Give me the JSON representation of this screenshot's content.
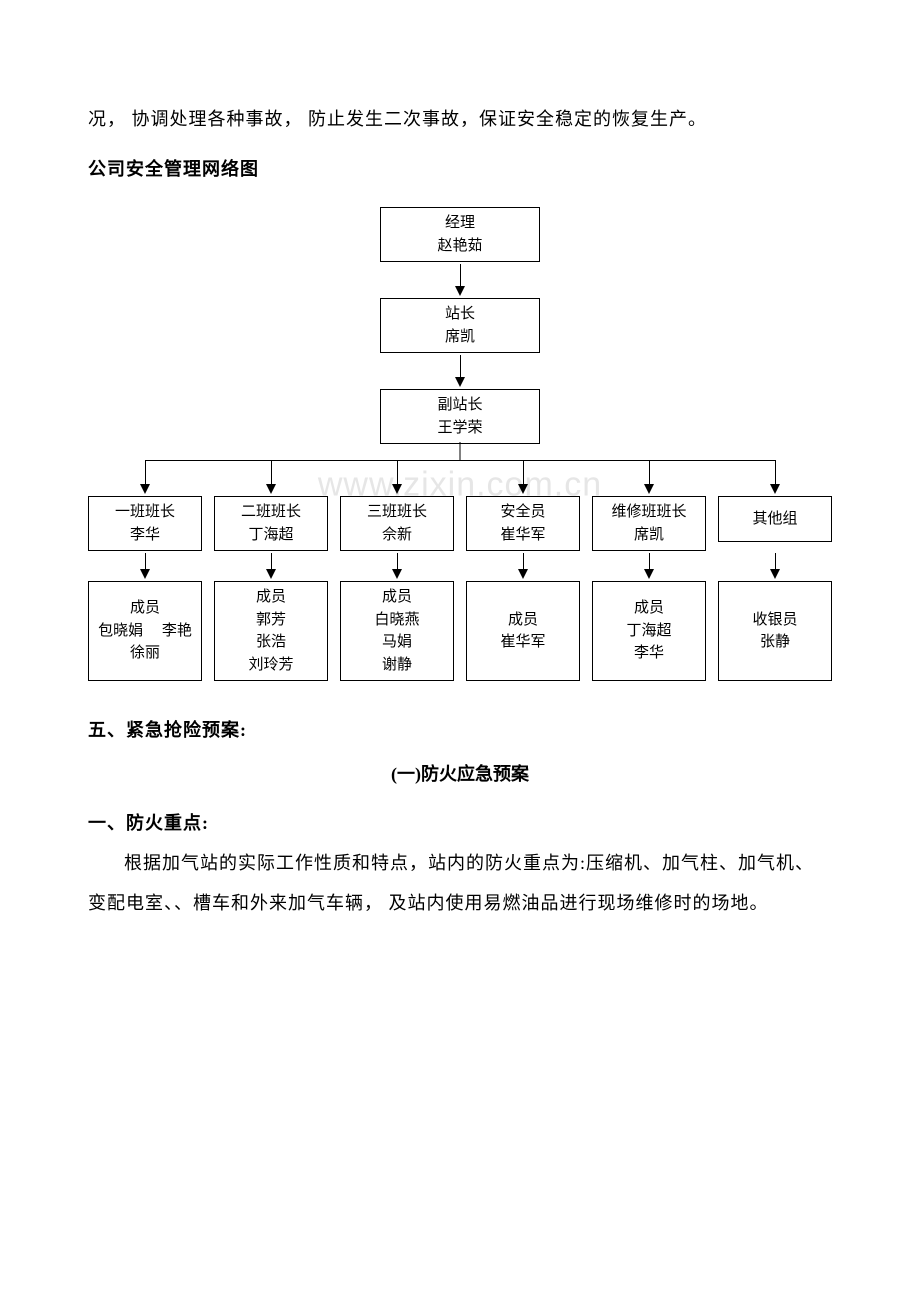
{
  "watermark": "www.zixin.com.cn",
  "para_top": "况， 协调处理各种事故， 防止发生二次事故，保证安全稳定的恢复生产。",
  "org_title": "公司安全管理网络图",
  "org": {
    "box_width_top": 160,
    "arrow_stem_h": 22,
    "top_nodes": [
      {
        "title": "经理",
        "name": "赵艳茹"
      },
      {
        "title": "站长",
        "name": "席凯"
      },
      {
        "title": "副站长",
        "name": "王学荣"
      }
    ],
    "teams": [
      {
        "head_title": "一班班长",
        "head_name": "李华",
        "member_label": "成员",
        "members": [
          "包晓娟　 李艳",
          "徐丽"
        ]
      },
      {
        "head_title": "二班班长",
        "head_name": "丁海超",
        "member_label": "成员",
        "members": [
          "郭芳",
          "张浩",
          "刘玲芳"
        ]
      },
      {
        "head_title": "三班班长",
        "head_name": "佘新",
        "member_label": "成员",
        "members": [
          "白晓燕",
          "马娟",
          "谢静"
        ]
      },
      {
        "head_title": "安全员",
        "head_name": "崔华军",
        "member_label": "成员",
        "members": [
          "崔华军"
        ]
      },
      {
        "head_title": "维修班班长",
        "head_name": "席凯",
        "member_label": "成员",
        "members": [
          "丁海超",
          "李华"
        ]
      },
      {
        "head_title": "其他组",
        "head_name": "",
        "member_label": "收银员",
        "members": [
          "张静"
        ]
      }
    ]
  },
  "section5_title": "五、紧急抢险预案:",
  "sub1_title": "(一)防火应急预案",
  "sub1_h1": " 一、防火重点:",
  "sub1_p1": "根据加气站的实际工作性质和特点，站内的防火重点为:压缩机、加气柱、加气机、变配电室、、槽车和外来加气车辆， 及站内使用易燃油品进行现场维修时的场地。"
}
